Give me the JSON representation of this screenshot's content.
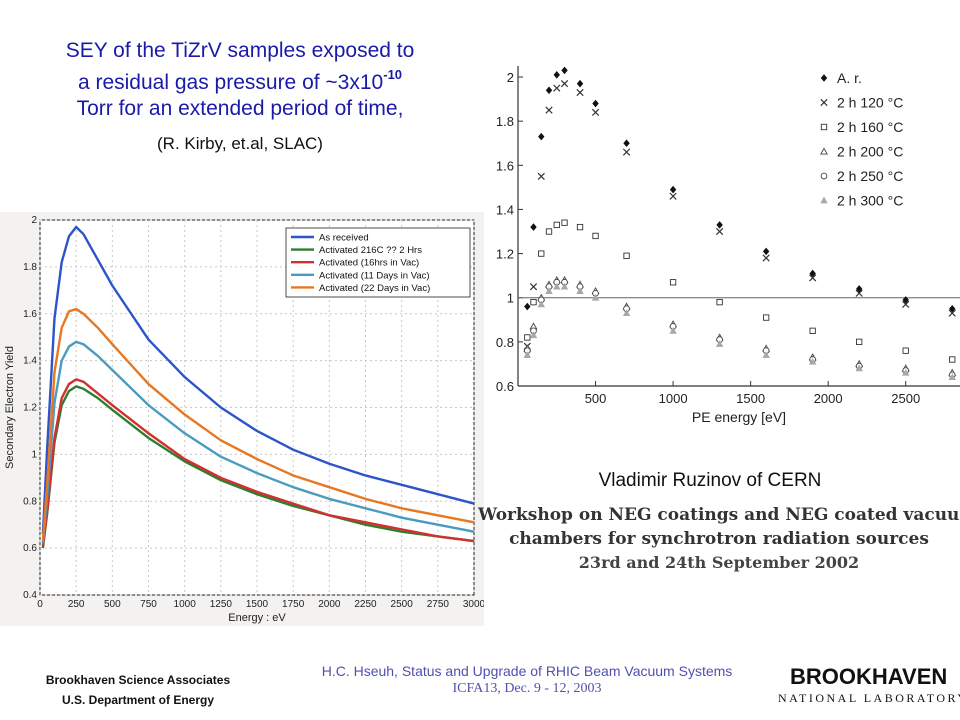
{
  "slide": {
    "title_lines": [
      "SEY of the TiZrV samples exposed to",
      "a residual gas pressure of ~3x10",
      "Torr for an extended period of time,"
    ],
    "title_sup": "-10",
    "credit": "(R. Kirby, et.al, SLAC)",
    "right_attribution": "Vladimir Ruzinov of CERN",
    "workshop_lines": [
      "Workshop on NEG coatings and NEG coated vacuum",
      "chambers for synchrotron radiation sources",
      "23rd and 24th September 2002"
    ],
    "footer_left": [
      "Brookhaven Science Associates",
      "U.S. Department of Energy"
    ],
    "footer_center": [
      "H.C. Hseuh, Status and Upgrade of RHIC Beam Vacuum Systems",
      "ICFA13, Dec. 9 - 12, 2003"
    ],
    "logo": [
      "BROOKHAVEN",
      "NATIONAL LABORATORY"
    ]
  },
  "chart_data": [
    {
      "type": "line",
      "xlabel": "Energy : eV",
      "ylabel": "Secondary Electron Yield",
      "xlim": [
        0,
        3000
      ],
      "ylim": [
        0.4,
        2.0
      ],
      "xticks": [
        0,
        250,
        500,
        750,
        1000,
        1250,
        1500,
        1750,
        2000,
        2250,
        2500,
        2750,
        3000
      ],
      "yticks": [
        0.4,
        0.6,
        0.8,
        1.0,
        1.2,
        1.4,
        1.6,
        1.8,
        2.0
      ],
      "grid": true,
      "legend": "top-right",
      "x": [
        20,
        50,
        100,
        150,
        200,
        250,
        300,
        400,
        500,
        750,
        1000,
        1250,
        1500,
        1750,
        2000,
        2250,
        2500,
        2750,
        3000
      ],
      "series": [
        {
          "name": "As received",
          "color": "#2b55c8",
          "values": [
            0.66,
            1.03,
            1.58,
            1.82,
            1.93,
            1.97,
            1.94,
            1.83,
            1.72,
            1.49,
            1.33,
            1.2,
            1.1,
            1.02,
            0.96,
            0.91,
            0.87,
            0.83,
            0.79
          ]
        },
        {
          "name": "Activated 216C ?? 2 Hrs",
          "color": "#2e7d32",
          "values": [
            0.6,
            0.75,
            1.05,
            1.21,
            1.27,
            1.29,
            1.28,
            1.24,
            1.19,
            1.07,
            0.97,
            0.89,
            0.83,
            0.78,
            0.74,
            0.7,
            0.67,
            0.65,
            0.63
          ]
        },
        {
          "name": "Activated (16hrs in Vac)",
          "color": "#d32f2f",
          "values": [
            0.61,
            0.76,
            1.07,
            1.24,
            1.3,
            1.32,
            1.31,
            1.26,
            1.21,
            1.09,
            0.98,
            0.9,
            0.84,
            0.79,
            0.74,
            0.71,
            0.68,
            0.65,
            0.63
          ]
        },
        {
          "name": "Activated (11 Days in Vac)",
          "color": "#4a9bbf",
          "values": [
            0.62,
            0.82,
            1.22,
            1.4,
            1.46,
            1.48,
            1.47,
            1.42,
            1.36,
            1.21,
            1.09,
            0.99,
            0.92,
            0.86,
            0.81,
            0.77,
            0.73,
            0.7,
            0.67
          ]
        },
        {
          "name": "Activated (22 Days in Vac)",
          "color": "#e87722",
          "values": [
            0.63,
            0.88,
            1.35,
            1.54,
            1.61,
            1.62,
            1.6,
            1.54,
            1.47,
            1.3,
            1.17,
            1.06,
            0.98,
            0.91,
            0.86,
            0.81,
            0.77,
            0.74,
            0.71
          ]
        }
      ]
    },
    {
      "type": "scatter",
      "xlabel": "PE energy [eV]",
      "ylabel": "",
      "xlim": [
        0,
        2850
      ],
      "ylim": [
        0.6,
        2.05
      ],
      "xticks": [
        500,
        1000,
        1500,
        2000,
        2500
      ],
      "yticks": [
        0.6,
        0.8,
        1.0,
        1.2,
        1.4,
        1.6,
        1.8,
        2.0
      ],
      "reference_line": 1.0,
      "legend": "top-right",
      "series": [
        {
          "name": "A. r.",
          "marker": "diamond",
          "x": [
            60,
            100,
            150,
            200,
            250,
            300,
            400,
            500,
            700,
            1000,
            1300,
            1600,
            1900,
            2200,
            2500,
            2800
          ],
          "values": [
            0.96,
            1.32,
            1.73,
            1.94,
            2.01,
            2.03,
            1.97,
            1.88,
            1.7,
            1.49,
            1.33,
            1.21,
            1.11,
            1.04,
            0.99,
            0.95
          ]
        },
        {
          "name": "2 h 120 °C",
          "marker": "x",
          "x": [
            60,
            100,
            150,
            200,
            250,
            300,
            400,
            500,
            700,
            1000,
            1300,
            1600,
            1900,
            2200,
            2500,
            2800
          ],
          "values": [
            0.78,
            1.05,
            1.55,
            1.85,
            1.95,
            1.97,
            1.93,
            1.84,
            1.66,
            1.46,
            1.3,
            1.18,
            1.09,
            1.02,
            0.97,
            0.93
          ]
        },
        {
          "name": "2 h 160 °C",
          "marker": "square",
          "x": [
            60,
            100,
            150,
            200,
            250,
            300,
            400,
            500,
            700,
            1000,
            1300,
            1600,
            1900,
            2200,
            2500,
            2800
          ],
          "values": [
            0.82,
            0.98,
            1.2,
            1.3,
            1.33,
            1.34,
            1.32,
            1.28,
            1.19,
            1.07,
            0.98,
            0.91,
            0.85,
            0.8,
            0.76,
            0.72
          ]
        },
        {
          "name": "2 h 200 °C",
          "marker": "triangle",
          "x": [
            60,
            100,
            150,
            200,
            250,
            300,
            400,
            500,
            700,
            1000,
            1300,
            1600,
            1900,
            2200,
            2500,
            2800
          ],
          "values": [
            0.77,
            0.87,
            1.0,
            1.06,
            1.08,
            1.08,
            1.06,
            1.03,
            0.96,
            0.88,
            0.82,
            0.77,
            0.73,
            0.7,
            0.68,
            0.66
          ]
        },
        {
          "name": "2 h 250 °C",
          "marker": "circle",
          "x": [
            60,
            100,
            150,
            200,
            250,
            300,
            400,
            500,
            700,
            1000,
            1300,
            1600,
            1900,
            2200,
            2500,
            2800
          ],
          "values": [
            0.76,
            0.85,
            0.99,
            1.05,
            1.07,
            1.07,
            1.05,
            1.02,
            0.95,
            0.87,
            0.81,
            0.76,
            0.72,
            0.69,
            0.67,
            0.65
          ]
        },
        {
          "name": "2 h 300 °C",
          "marker": "triangle-filled",
          "x": [
            60,
            100,
            150,
            200,
            250,
            300,
            400,
            500,
            700,
            1000,
            1300,
            1600,
            1900,
            2200,
            2500,
            2800
          ],
          "values": [
            0.74,
            0.83,
            0.97,
            1.03,
            1.05,
            1.05,
            1.03,
            1.0,
            0.93,
            0.85,
            0.79,
            0.74,
            0.71,
            0.68,
            0.66,
            0.64
          ]
        }
      ]
    }
  ]
}
